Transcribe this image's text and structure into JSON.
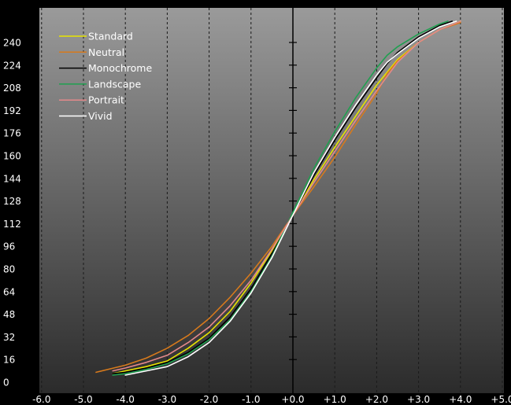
{
  "chart_data": {
    "type": "line",
    "title": "",
    "xlabel": "",
    "ylabel": "",
    "xlim": [
      -6.0,
      5.0
    ],
    "ylim": [
      0,
      255
    ],
    "x_ticks": [
      -6,
      -5,
      -4,
      -3,
      -2,
      -1,
      0,
      1,
      2,
      3,
      4,
      5
    ],
    "x_tick_labels": [
      "-6.0",
      "-5.0",
      "-4.0",
      "-3.0",
      "-2.0",
      "-1.0",
      "+0.0",
      "+1.0",
      "+2.0",
      "+3.0",
      "+4.0",
      "+5.0"
    ],
    "y_ticks": [
      0,
      16,
      32,
      48,
      64,
      80,
      96,
      112,
      128,
      144,
      160,
      176,
      192,
      208,
      224,
      240
    ],
    "y_tick_labels": [
      "0",
      "16",
      "32",
      "48",
      "64",
      "80",
      "96",
      "112",
      "128",
      "144",
      "160",
      "176",
      "192",
      "208",
      "224",
      "240"
    ],
    "grid": "vertical dashed",
    "legend_position": "top-left",
    "background": {
      "top": "#9a9a9a",
      "bottom": "#2b2b2b"
    },
    "series": [
      {
        "name": "Standard",
        "color": "#e8e400",
        "points": [
          [
            -4.3,
            6
          ],
          [
            -4.0,
            8
          ],
          [
            -3.5,
            11
          ],
          [
            -3.0,
            15
          ],
          [
            -2.5,
            24
          ],
          [
            -2.0,
            35
          ],
          [
            -1.5,
            50
          ],
          [
            -1.0,
            70
          ],
          [
            -0.5,
            93
          ],
          [
            0,
            118
          ],
          [
            0.5,
            143
          ],
          [
            1.0,
            166
          ],
          [
            1.5,
            188
          ],
          [
            2.0,
            210
          ],
          [
            2.5,
            228
          ],
          [
            3.0,
            240
          ],
          [
            3.5,
            249
          ],
          [
            4.0,
            255
          ]
        ]
      },
      {
        "name": "Neutral",
        "color": "#d77a1c",
        "points": [
          [
            -4.7,
            7
          ],
          [
            -4.0,
            12
          ],
          [
            -3.5,
            17
          ],
          [
            -3.0,
            24
          ],
          [
            -2.5,
            33
          ],
          [
            -2.0,
            45
          ],
          [
            -1.5,
            60
          ],
          [
            -1.0,
            77
          ],
          [
            -0.5,
            96
          ],
          [
            0,
            118
          ],
          [
            0.5,
            138
          ],
          [
            1.0,
            159
          ],
          [
            1.5,
            182
          ],
          [
            2.0,
            204
          ],
          [
            2.25,
            218
          ],
          [
            2.5,
            227
          ],
          [
            3.0,
            240
          ],
          [
            3.5,
            249
          ],
          [
            4.0,
            254
          ]
        ]
      },
      {
        "name": "Monochrome",
        "color": "#000000",
        "points": [
          [
            -4.3,
            6
          ],
          [
            -4.0,
            7
          ],
          [
            -3.5,
            10
          ],
          [
            -3.0,
            14
          ],
          [
            -2.5,
            21
          ],
          [
            -2.0,
            31
          ],
          [
            -1.5,
            46
          ],
          [
            -1.0,
            66
          ],
          [
            -0.5,
            91
          ],
          [
            0,
            118
          ],
          [
            0.5,
            146
          ],
          [
            1.0,
            171
          ],
          [
            1.5,
            194
          ],
          [
            2.0,
            215
          ],
          [
            2.25,
            225
          ],
          [
            2.5,
            233
          ],
          [
            3.0,
            244
          ],
          [
            3.5,
            252
          ],
          [
            3.8,
            255
          ]
        ]
      },
      {
        "name": "Landscape",
        "color": "#1fa050",
        "points": [
          [
            -4.3,
            5
          ],
          [
            -4.0,
            6
          ],
          [
            -3.5,
            9
          ],
          [
            -3.0,
            13
          ],
          [
            -2.5,
            20
          ],
          [
            -2.0,
            30
          ],
          [
            -1.5,
            44
          ],
          [
            -1.0,
            64
          ],
          [
            -0.5,
            89
          ],
          [
            0,
            120
          ],
          [
            0.5,
            151
          ],
          [
            1.0,
            177
          ],
          [
            1.5,
            201
          ],
          [
            2.0,
            222
          ],
          [
            2.25,
            231
          ],
          [
            2.5,
            237
          ],
          [
            3.0,
            246
          ],
          [
            3.5,
            253
          ],
          [
            3.7,
            255
          ]
        ]
      },
      {
        "name": "Portrait",
        "color": "#e4898b",
        "points": [
          [
            -4.3,
            8
          ],
          [
            -4.0,
            10
          ],
          [
            -3.5,
            14
          ],
          [
            -3.0,
            19
          ],
          [
            -2.5,
            28
          ],
          [
            -2.0,
            39
          ],
          [
            -1.5,
            54
          ],
          [
            -1.0,
            72
          ],
          [
            -0.5,
            94
          ],
          [
            0,
            118
          ],
          [
            0.5,
            141
          ],
          [
            1.0,
            163
          ],
          [
            1.5,
            185
          ],
          [
            2.0,
            206
          ],
          [
            2.5,
            226
          ],
          [
            3.0,
            240
          ],
          [
            3.5,
            249
          ],
          [
            4.0,
            255
          ]
        ]
      },
      {
        "name": "Vivid",
        "color": "#ffffff",
        "points": [
          [
            -4.0,
            5
          ],
          [
            -3.5,
            8
          ],
          [
            -3.0,
            11
          ],
          [
            -2.5,
            18
          ],
          [
            -2.0,
            28
          ],
          [
            -1.5,
            43
          ],
          [
            -1.0,
            63
          ],
          [
            -0.5,
            88
          ],
          [
            0,
            118
          ],
          [
            0.5,
            148
          ],
          [
            1.0,
            173
          ],
          [
            1.5,
            196
          ],
          [
            2.0,
            217
          ],
          [
            2.25,
            226
          ],
          [
            2.5,
            232
          ],
          [
            3.0,
            243
          ],
          [
            3.5,
            251
          ],
          [
            3.9,
            255
          ]
        ]
      }
    ]
  }
}
